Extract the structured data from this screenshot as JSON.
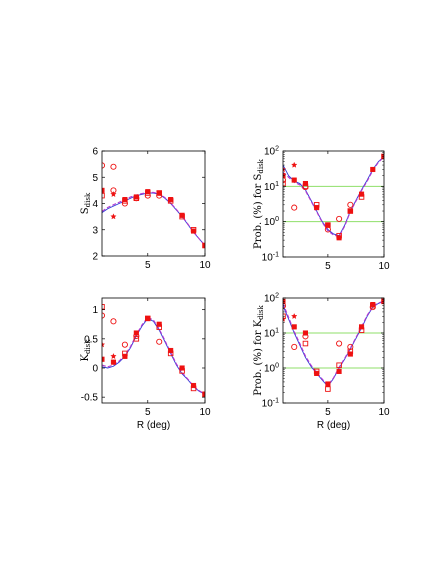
{
  "chart_data": [
    {
      "type": "scatter",
      "panel": "top-left",
      "ylabel": "S",
      "ylabel_sub": "disk",
      "xlabel": "",
      "xlim": [
        1,
        10
      ],
      "ylim": [
        2,
        6
      ],
      "xticks": [
        5,
        10
      ],
      "yticks": [
        2,
        3,
        4,
        5,
        6
      ],
      "log_y": false,
      "series": [
        {
          "marker": "line-blue-solid",
          "x": [
            1,
            1.5,
            2,
            2.5,
            3,
            3.5,
            4,
            4.5,
            5,
            5.5,
            6,
            6.5,
            7,
            7.5,
            8,
            8.5,
            9,
            9.5,
            10
          ],
          "y": [
            3.65,
            3.8,
            3.9,
            4.0,
            4.1,
            4.2,
            4.3,
            4.35,
            4.4,
            4.4,
            4.35,
            4.2,
            4.0,
            3.75,
            3.5,
            3.2,
            2.9,
            2.65,
            2.4
          ]
        },
        {
          "marker": "line-purple-dashed",
          "x": [
            1,
            1.5,
            2,
            2.5,
            3,
            3.5,
            4,
            4.5,
            5,
            5.5,
            6,
            6.5,
            7,
            7.5,
            8,
            8.5,
            9,
            9.5,
            10
          ],
          "y": [
            3.7,
            3.85,
            3.95,
            4.05,
            4.15,
            4.25,
            4.32,
            4.38,
            4.42,
            4.42,
            4.38,
            4.22,
            4.02,
            3.77,
            3.52,
            3.22,
            2.92,
            2.65,
            2.4
          ]
        },
        {
          "marker": "open-square",
          "x": [
            1,
            3,
            4,
            5,
            6,
            7,
            8,
            9,
            10
          ],
          "y": [
            4.3,
            4.1,
            4.2,
            4.4,
            4.4,
            4.1,
            3.5,
            3.0,
            2.4
          ]
        },
        {
          "marker": "open-circle",
          "x": [
            1,
            2,
            2,
            3,
            4,
            5,
            6
          ],
          "y": [
            5.45,
            5.4,
            4.5,
            4.0,
            4.2,
            4.3,
            4.3
          ]
        },
        {
          "marker": "filled-square",
          "x": [
            1,
            3,
            4,
            5,
            6,
            7,
            8,
            9,
            10
          ],
          "y": [
            4.5,
            4.15,
            4.25,
            4.45,
            4.4,
            4.15,
            3.55,
            2.95,
            2.4
          ]
        },
        {
          "marker": "star",
          "x": [
            2,
            2
          ],
          "y": [
            4.35,
            3.5
          ]
        }
      ]
    },
    {
      "type": "scatter",
      "panel": "top-right",
      "ylabel": "Prob. (%) for S",
      "ylabel_sub": "disk",
      "xlabel": "",
      "xlim": [
        1,
        10
      ],
      "ylim": [
        0.1,
        100
      ],
      "xticks": [
        5,
        10
      ],
      "yticks": [
        0.1,
        1,
        10,
        100
      ],
      "ytick_labels": [
        {
          "base": "10",
          "exp": "-1"
        },
        {
          "base": "10",
          "exp": "0"
        },
        {
          "base": "10",
          "exp": "1"
        },
        {
          "base": "10",
          "exp": "2"
        }
      ],
      "log_y": true,
      "hlines": [
        10,
        1
      ],
      "hline_color": "#8fdf6a",
      "series": [
        {
          "marker": "line-blue-solid",
          "x": [
            1,
            1.5,
            2,
            2.5,
            3,
            3.5,
            4,
            4.5,
            5,
            5.5,
            6,
            6.5,
            7,
            7.5,
            8,
            8.5,
            9,
            9.5,
            10
          ],
          "y": [
            40,
            20,
            14,
            12,
            8,
            4,
            2,
            1,
            0.6,
            0.45,
            0.4,
            0.8,
            2,
            4,
            8,
            15,
            30,
            50,
            70
          ]
        },
        {
          "marker": "line-purple-dashed",
          "x": [
            1,
            1.5,
            2,
            2.5,
            3,
            3.5,
            4,
            4.5,
            5,
            5.5,
            6,
            6.5,
            7,
            7.5,
            8,
            8.5,
            9,
            9.5,
            10
          ],
          "y": [
            25,
            18,
            13,
            11,
            7.5,
            3.8,
            1.9,
            0.95,
            0.55,
            0.42,
            0.38,
            0.75,
            1.9,
            3.8,
            7.6,
            14,
            28,
            48,
            68
          ]
        },
        {
          "marker": "open-square",
          "x": [
            1,
            3,
            4,
            5,
            6,
            7,
            8,
            10
          ],
          "y": [
            12,
            10,
            3,
            0.8,
            0.4,
            2.0,
            5.0,
            70
          ]
        },
        {
          "marker": "open-circle",
          "x": [
            1,
            2,
            3,
            5,
            6,
            7
          ],
          "y": [
            15,
            2.5,
            9.5,
            0.6,
            1.2,
            3.0
          ]
        },
        {
          "marker": "filled-square",
          "x": [
            1,
            2,
            3,
            4,
            5,
            6,
            7,
            8,
            9,
            10
          ],
          "y": [
            20,
            15,
            12,
            2.5,
            0.8,
            0.35,
            2.0,
            6.0,
            30,
            70
          ]
        },
        {
          "marker": "star",
          "x": [
            1,
            2
          ],
          "y": [
            30,
            40
          ]
        }
      ]
    },
    {
      "type": "scatter",
      "panel": "bottom-left",
      "ylabel": "K",
      "ylabel_sub": "disk",
      "xlabel": "R (deg)",
      "xlim": [
        1,
        10
      ],
      "ylim": [
        -0.6,
        1.2
      ],
      "xticks": [
        5,
        10
      ],
      "yticks": [
        -0.5,
        0,
        0.5,
        1
      ],
      "ytick_labels": [
        {
          "base": "-0.5"
        },
        {
          "base": "0"
        },
        {
          "base": "0.5"
        },
        {
          "base": "1"
        }
      ],
      "log_y": false,
      "series": [
        {
          "marker": "line-blue-solid",
          "x": [
            1,
            1.5,
            2,
            2.5,
            3,
            3.5,
            4,
            4.5,
            5,
            5.5,
            6,
            6.5,
            7,
            7.5,
            8,
            8.5,
            9,
            9.5,
            10
          ],
          "y": [
            0.02,
            0.0,
            0.03,
            0.1,
            0.2,
            0.35,
            0.55,
            0.72,
            0.85,
            0.8,
            0.65,
            0.45,
            0.25,
            0.05,
            -0.1,
            -0.2,
            -0.32,
            -0.4,
            -0.45
          ]
        },
        {
          "marker": "line-purple-dashed",
          "x": [
            1,
            1.5,
            2,
            2.5,
            3,
            3.5,
            4,
            4.5,
            5,
            5.5,
            6,
            6.5,
            7,
            7.5,
            8,
            8.5,
            9,
            9.5,
            10
          ],
          "y": [
            0.05,
            0.02,
            0.05,
            0.12,
            0.22,
            0.37,
            0.57,
            0.74,
            0.87,
            0.82,
            0.67,
            0.47,
            0.27,
            0.07,
            -0.08,
            -0.19,
            -0.31,
            -0.39,
            -0.45
          ]
        },
        {
          "marker": "open-square",
          "x": [
            1,
            3,
            4,
            5,
            6,
            7,
            8,
            9,
            10
          ],
          "y": [
            1.05,
            0.25,
            0.5,
            0.85,
            0.7,
            0.25,
            -0.05,
            -0.35,
            -0.45
          ]
        },
        {
          "marker": "open-circle",
          "x": [
            1,
            2,
            3,
            4,
            6
          ],
          "y": [
            0.9,
            0.8,
            0.4,
            0.55,
            0.45
          ]
        },
        {
          "marker": "filled-square",
          "x": [
            1,
            2,
            3,
            4,
            5,
            6,
            7,
            8,
            9,
            10
          ],
          "y": [
            0.15,
            0.1,
            0.2,
            0.6,
            0.85,
            0.75,
            0.3,
            0.0,
            -0.3,
            -0.45
          ]
        },
        {
          "marker": "star",
          "x": [
            1,
            2
          ],
          "y": [
            0.4,
            0.2
          ]
        }
      ]
    },
    {
      "type": "scatter",
      "panel": "bottom-right",
      "ylabel": "Prob. (%) for K",
      "ylabel_sub": "disk",
      "xlabel": "R (deg)",
      "xlim": [
        1,
        10
      ],
      "ylim": [
        0.1,
        100
      ],
      "xticks": [
        5,
        10
      ],
      "yticks": [
        0.1,
        1,
        10,
        100
      ],
      "ytick_labels": [
        {
          "base": "10",
          "exp": "-1"
        },
        {
          "base": "10",
          "exp": "0"
        },
        {
          "base": "10",
          "exp": "1"
        },
        {
          "base": "10",
          "exp": "2"
        }
      ],
      "log_y": true,
      "hlines": [
        10,
        1
      ],
      "hline_color": "#8fdf6a",
      "series": [
        {
          "marker": "line-blue-solid",
          "x": [
            1,
            1.5,
            2,
            2.5,
            3,
            3.5,
            4,
            4.5,
            5,
            5.5,
            6,
            6.5,
            7,
            7.5,
            8,
            8.5,
            9,
            9.5,
            10
          ],
          "y": [
            60,
            25,
            10,
            4.5,
            2,
            1.1,
            0.7,
            0.45,
            0.3,
            0.5,
            1,
            1.8,
            3.5,
            7,
            14,
            30,
            55,
            70,
            80
          ]
        },
        {
          "marker": "line-purple-dashed",
          "x": [
            1,
            1.5,
            2,
            2.5,
            3,
            3.5,
            4,
            4.5,
            5,
            5.5,
            6,
            6.5,
            7,
            7.5,
            8,
            8.5,
            9,
            9.5,
            10
          ],
          "y": [
            70,
            28,
            11,
            5,
            2.2,
            1.2,
            0.75,
            0.48,
            0.32,
            0.52,
            1.05,
            1.9,
            3.7,
            7.4,
            15,
            32,
            57,
            72,
            82
          ]
        },
        {
          "marker": "open-square",
          "x": [
            1,
            3,
            4,
            5,
            6,
            7,
            8,
            9,
            10
          ],
          "y": [
            30,
            5,
            0.8,
            0.25,
            1.2,
            3.0,
            12,
            60,
            80
          ]
        },
        {
          "marker": "open-circle",
          "x": [
            1,
            2,
            3,
            6,
            7,
            9
          ],
          "y": [
            60,
            4.0,
            8,
            5,
            4.0,
            55
          ]
        },
        {
          "marker": "filled-square",
          "x": [
            1,
            2,
            3,
            4,
            5,
            6,
            7,
            8,
            9,
            10
          ],
          "y": [
            80,
            15,
            10,
            0.7,
            0.35,
            0.8,
            2.5,
            15,
            65,
            80
          ]
        },
        {
          "marker": "star",
          "x": [
            1,
            2
          ],
          "y": [
            25,
            30
          ]
        }
      ]
    }
  ]
}
